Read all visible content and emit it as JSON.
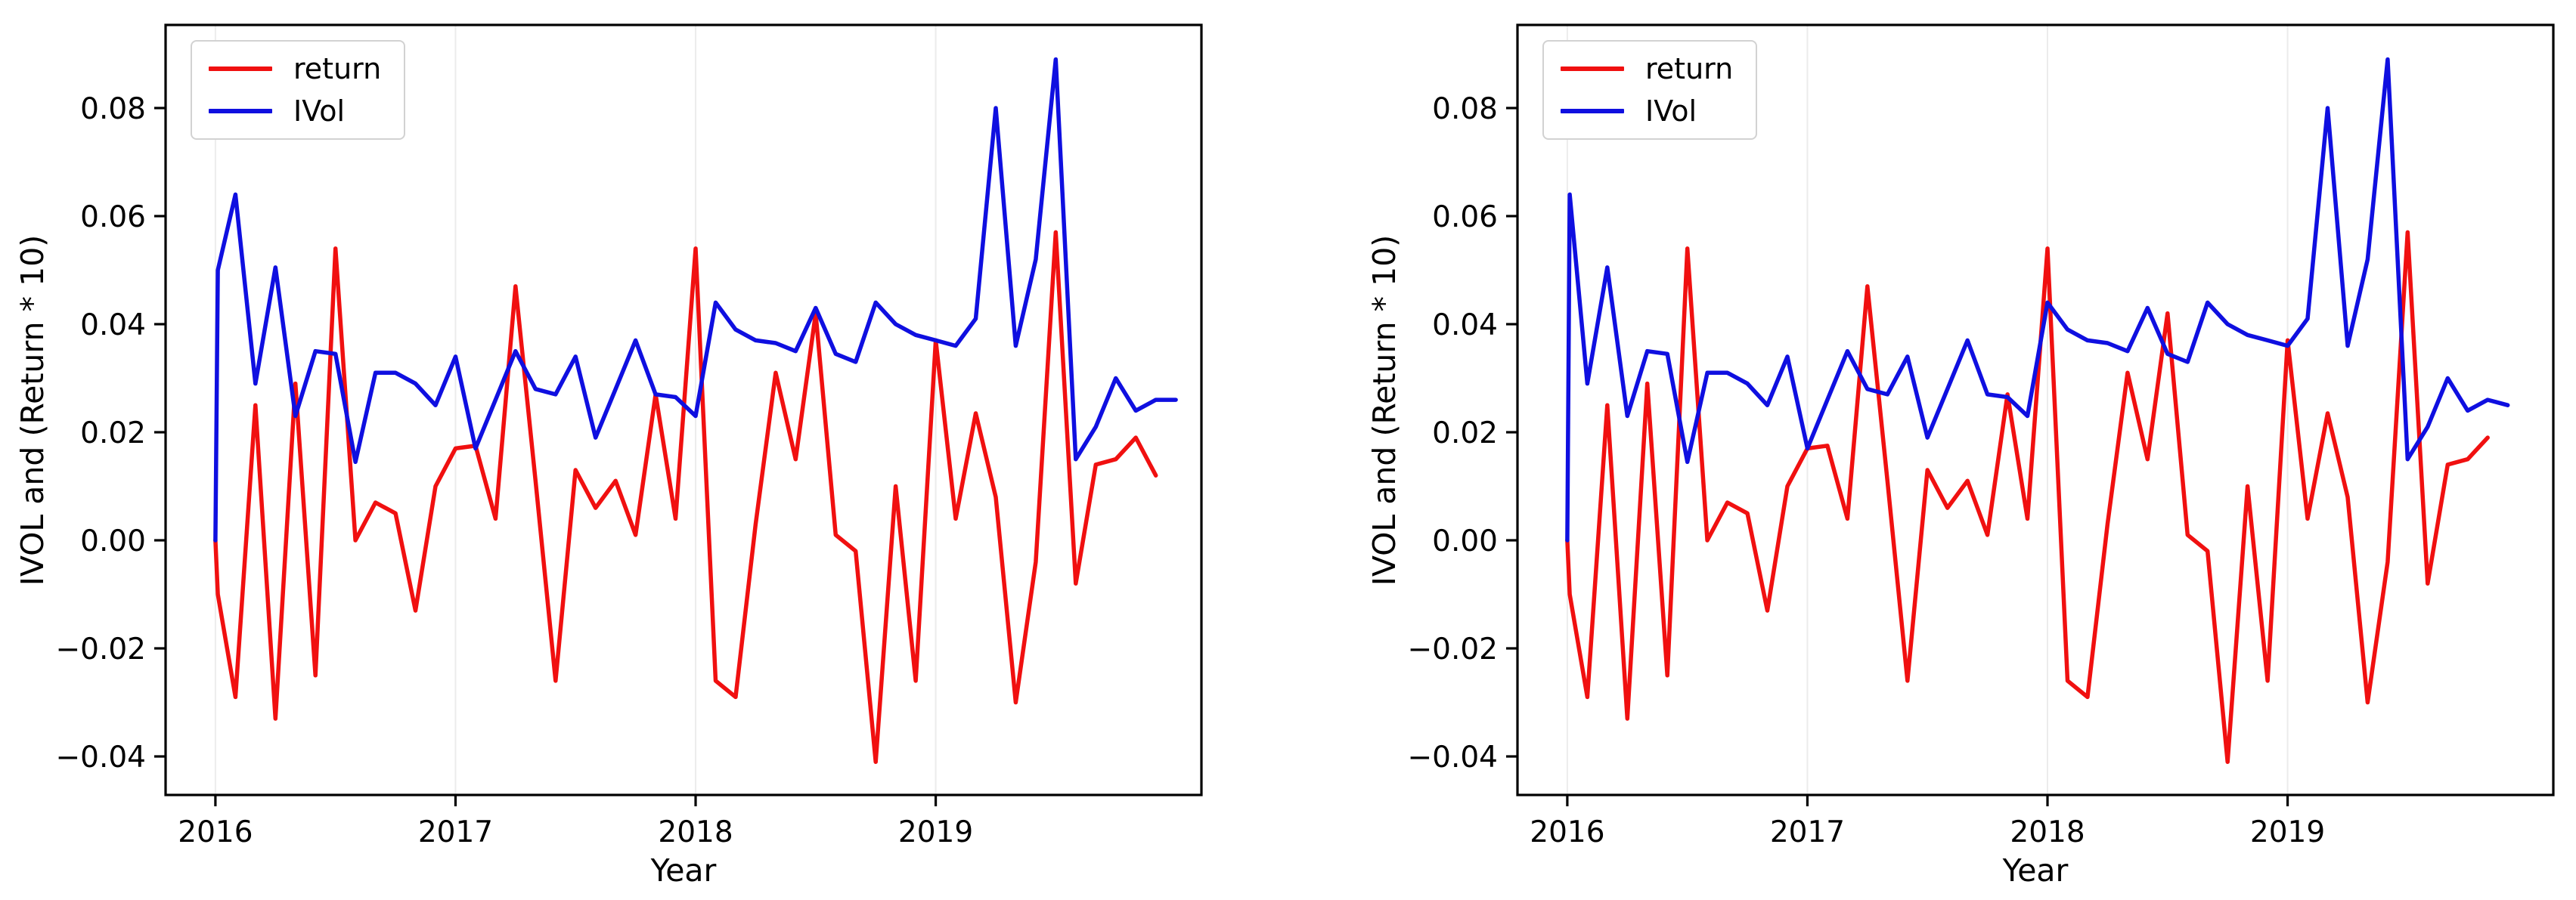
{
  "figure": {
    "background": "#ffffff",
    "accent_colors": {
      "return_red": "#f01010",
      "ivol_blue": "#0f0fe0",
      "gridline": "#ececec",
      "spine": "#000000",
      "legend_border": "#d2d2d2"
    }
  },
  "chart_data": [
    {
      "type": "line",
      "title": "",
      "xlabel": "Year",
      "ylabel": "IVOL and (Return * 10)",
      "legend_position": "upper left",
      "grid": "vertical-year-lines-only",
      "xlim": [
        -2.49,
        49.28
      ],
      "ylim": [
        -0.04713,
        0.09538
      ],
      "x_ticks": {
        "positions": [
          0,
          12,
          24,
          36
        ],
        "labels": [
          "2016",
          "2017",
          "2018",
          "2019"
        ]
      },
      "y_ticks": {
        "values": [
          0.08,
          0.06,
          0.04,
          0.02,
          0.0,
          -0.02,
          -0.04
        ],
        "labels": [
          "0.08",
          "0.06",
          "0.04",
          "0.02",
          "0.00",
          "−0.02",
          "−0.04"
        ]
      },
      "x_unit": "months since 2016-01",
      "series": [
        {
          "name": "return",
          "color": "#f01010",
          "x": [
            0,
            0.12,
            1,
            2,
            3,
            4,
            5,
            6,
            7,
            8,
            9,
            10,
            11,
            12,
            13,
            14,
            15,
            16,
            17,
            18,
            19,
            20,
            21,
            22,
            23,
            24,
            25,
            26,
            27,
            28,
            29,
            30,
            31,
            32,
            33,
            34,
            35,
            36,
            37,
            38,
            39,
            40,
            41,
            42,
            43,
            44,
            45,
            46,
            47
          ],
          "values": [
            0.0,
            -0.01,
            -0.029,
            0.025,
            -0.033,
            0.029,
            -0.025,
            0.054,
            0.0,
            0.007,
            0.005,
            -0.013,
            0.01,
            0.017,
            0.0175,
            0.004,
            0.047,
            0.011,
            -0.026,
            0.013,
            0.006,
            0.011,
            0.001,
            0.027,
            0.004,
            0.054,
            -0.026,
            -0.029,
            0.003,
            0.031,
            0.015,
            0.042,
            0.001,
            -0.002,
            -0.041,
            0.01,
            -0.026,
            0.037,
            0.004,
            0.0235,
            0.008,
            -0.03,
            -0.004,
            0.057,
            -0.008,
            0.014,
            0.015,
            0.019,
            0.012
          ]
        },
        {
          "name": "IVol",
          "color": "#0f0fe0",
          "x": [
            0,
            0.12,
            1,
            2,
            3,
            4,
            5,
            6,
            7,
            8,
            9,
            10,
            11,
            12,
            13,
            14,
            15,
            16,
            17,
            18,
            19,
            20,
            21,
            22,
            23,
            24,
            25,
            26,
            27,
            28,
            29,
            30,
            31,
            32,
            33,
            34,
            35,
            36,
            37,
            38,
            39,
            40,
            41,
            42,
            43,
            44,
            45,
            46,
            47,
            48
          ],
          "values": [
            0.0,
            0.05,
            0.064,
            0.029,
            0.0505,
            0.023,
            0.035,
            0.0345,
            0.0145,
            0.031,
            0.031,
            0.029,
            0.025,
            0.034,
            0.017,
            0.026,
            0.035,
            0.028,
            0.027,
            0.034,
            0.019,
            0.028,
            0.037,
            0.027,
            0.0265,
            0.023,
            0.044,
            0.039,
            0.037,
            0.0365,
            0.035,
            0.043,
            0.0345,
            0.033,
            0.044,
            0.04,
            0.038,
            0.037,
            0.036,
            0.041,
            0.08,
            0.036,
            0.052,
            0.089,
            0.015,
            0.021,
            0.03,
            0.024,
            0.026,
            0.026
          ]
        }
      ]
    },
    {
      "type": "line",
      "title": "",
      "xlabel": "Year",
      "ylabel": "IVOL and (Return * 10)",
      "legend_position": "upper left",
      "grid": "vertical-year-lines-only",
      "xlim": [
        -2.49,
        49.28
      ],
      "ylim": [
        -0.04713,
        0.09538
      ],
      "x_ticks": {
        "positions": [
          0,
          12,
          24,
          36
        ],
        "labels": [
          "2016",
          "2017",
          "2018",
          "2019"
        ]
      },
      "y_ticks": {
        "values": [
          0.08,
          0.06,
          0.04,
          0.02,
          0.0,
          -0.02,
          -0.04
        ],
        "labels": [
          "0.08",
          "0.06",
          "0.04",
          "0.02",
          "0.00",
          "−0.02",
          "−0.04"
        ]
      },
      "x_unit": "months since 2016-01 (IVol series led by one month vs left panel)",
      "series": [
        {
          "name": "return",
          "color": "#f01010",
          "x": [
            0,
            0.12,
            1,
            2,
            3,
            4,
            5,
            6,
            7,
            8,
            9,
            10,
            11,
            12,
            13,
            14,
            15,
            16,
            17,
            18,
            19,
            20,
            21,
            22,
            23,
            24,
            25,
            26,
            27,
            28,
            29,
            30,
            31,
            32,
            33,
            34,
            35,
            36,
            37,
            38,
            39,
            40,
            41,
            42,
            43,
            44,
            45,
            46
          ],
          "values": [
            0.0,
            -0.01,
            -0.029,
            0.025,
            -0.033,
            0.029,
            -0.025,
            0.054,
            0.0,
            0.007,
            0.005,
            -0.013,
            0.01,
            0.017,
            0.0175,
            0.004,
            0.047,
            0.011,
            -0.026,
            0.013,
            0.006,
            0.011,
            0.001,
            0.027,
            0.004,
            0.054,
            -0.026,
            -0.029,
            0.003,
            0.031,
            0.015,
            0.042,
            0.001,
            -0.002,
            -0.041,
            0.01,
            -0.026,
            0.037,
            0.004,
            0.0235,
            0.008,
            -0.03,
            -0.004,
            0.057,
            -0.008,
            0.014,
            0.015,
            0.019
          ]
        },
        {
          "name": "IVol",
          "color": "#0f0fe0",
          "x": [
            0,
            0.12,
            1,
            2,
            3,
            4,
            5,
            6,
            7,
            8,
            9,
            10,
            11,
            12,
            13,
            14,
            15,
            16,
            17,
            18,
            19,
            20,
            21,
            22,
            23,
            24,
            25,
            26,
            27,
            28,
            29,
            30,
            31,
            32,
            33,
            34,
            35,
            36,
            37,
            38,
            39,
            40,
            41,
            42,
            43,
            44,
            45,
            46,
            47
          ],
          "values": [
            0.0,
            0.064,
            0.029,
            0.0505,
            0.023,
            0.035,
            0.0345,
            0.0145,
            0.031,
            0.031,
            0.029,
            0.025,
            0.034,
            0.017,
            0.026,
            0.035,
            0.028,
            0.027,
            0.034,
            0.019,
            0.028,
            0.037,
            0.027,
            0.0265,
            0.023,
            0.044,
            0.039,
            0.037,
            0.0365,
            0.035,
            0.043,
            0.0345,
            0.033,
            0.044,
            0.04,
            0.038,
            0.037,
            0.036,
            0.041,
            0.08,
            0.036,
            0.052,
            0.089,
            0.015,
            0.021,
            0.03,
            0.024,
            0.026,
            0.025
          ]
        }
      ]
    }
  ]
}
